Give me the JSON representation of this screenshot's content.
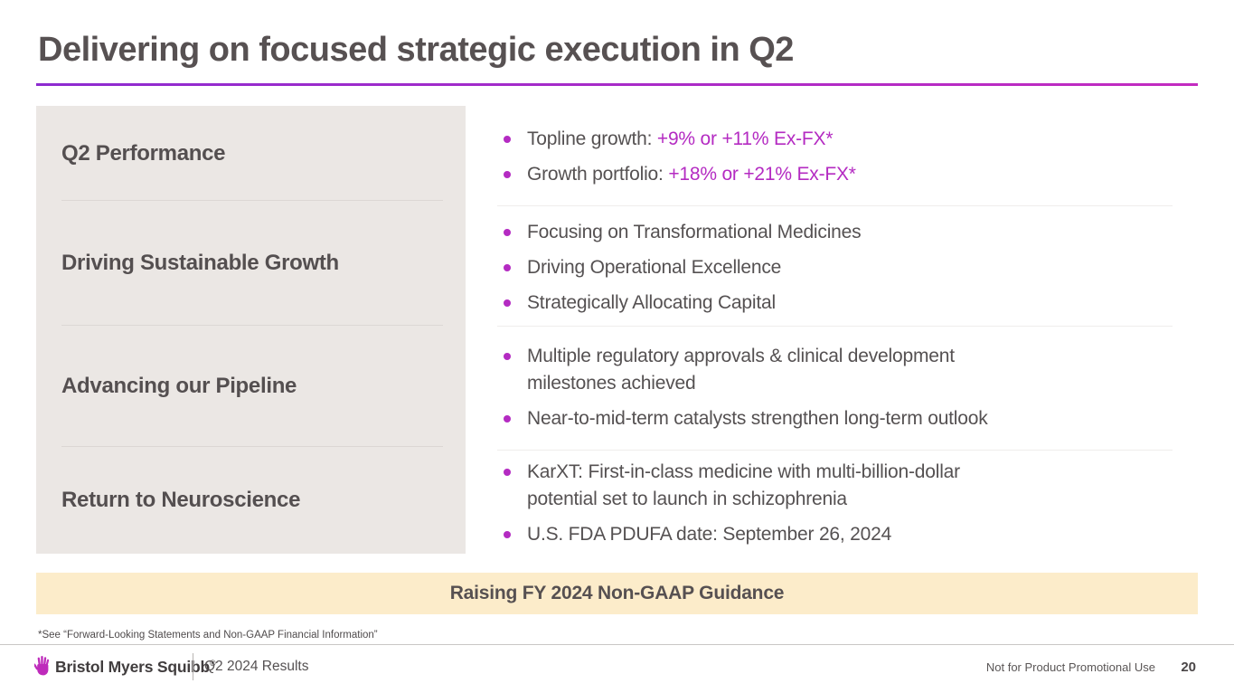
{
  "slide": {
    "title": "Delivering on focused strategic execution in Q2",
    "banner": "Raising FY 2024 Non-GAAP Guidance",
    "footnote": "*See “Forward-Looking Statements and Non-GAAP Financial Information”"
  },
  "sections": [
    {
      "label": "Q2 Performance",
      "bullets": [
        {
          "segments": [
            {
              "t": "Topline growth: "
            },
            {
              "t": "+9% or +11% Ex-FX*",
              "accent": true
            }
          ]
        },
        {
          "segments": [
            {
              "t": "Growth portfolio: "
            },
            {
              "t": "+18% or +21% Ex-FX*",
              "accent": true
            }
          ]
        }
      ]
    },
    {
      "label": "Driving Sustainable Growth",
      "bullets": [
        {
          "segments": [
            {
              "t": "Focusing on Transformational Medicines"
            }
          ]
        },
        {
          "segments": [
            {
              "t": "Driving Operational Excellence"
            }
          ]
        },
        {
          "segments": [
            {
              "t": "Strategically Allocating Capital"
            }
          ]
        }
      ]
    },
    {
      "label": "Advancing our Pipeline",
      "bullets": [
        {
          "segments": [
            {
              "t": "Multiple regulatory approvals & clinical development"
            },
            {
              "br": true
            },
            {
              "t": "milestones achieved"
            }
          ]
        },
        {
          "segments": [
            {
              "t": "Near-to-mid-term catalysts strengthen long-term outlook"
            }
          ]
        }
      ]
    },
    {
      "label": "Return to Neuroscience",
      "bullets": [
        {
          "segments": [
            {
              "t": "KarXT: First-in-class medicine with multi-billion-dollar"
            },
            {
              "br": true
            },
            {
              "t": "potential set to launch in schizophrenia"
            }
          ]
        },
        {
          "segments": [
            {
              "t": "U.S. FDA PDUFA date: September 26, 2024"
            }
          ]
        }
      ]
    }
  ],
  "footer": {
    "brand": "Bristol Myers Squibb",
    "brand_reg": "®",
    "logo_icon": "bms-hand-icon",
    "deck_title": "Q2 2024 Results",
    "usage_note": "Not for Product Promotional Use",
    "page_number": "20"
  },
  "colors": {
    "accent_magenta": "#b42bc2",
    "title_text": "#575152",
    "body_text": "#555152",
    "sidebar_bg": "#ebe7e4",
    "banner_bg": "#fcecca",
    "underline_gradient_start": "#8d2bd0",
    "underline_gradient_end": "#c32bc0",
    "logo_magenta": "#be2bbb"
  }
}
